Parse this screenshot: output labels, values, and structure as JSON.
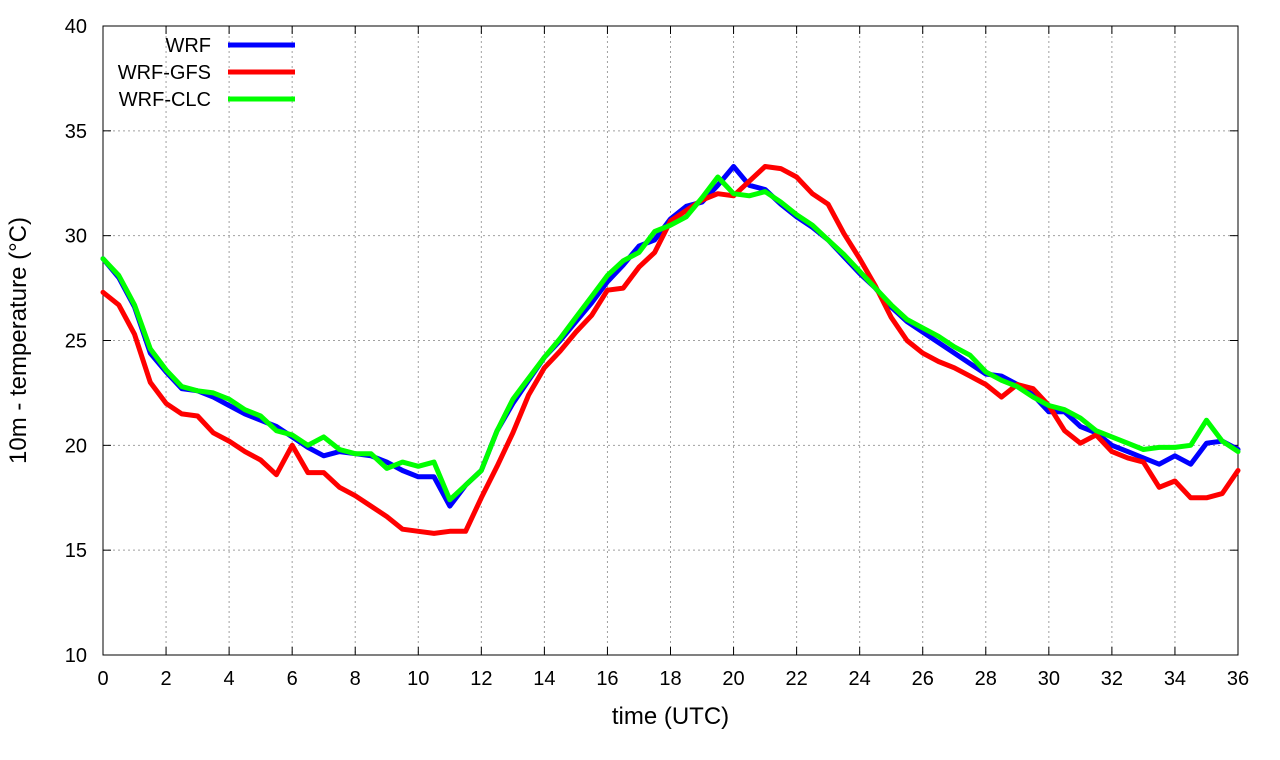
{
  "chart_data": {
    "type": "line",
    "title": "",
    "xlabel": "time (UTC)",
    "ylabel": "10m - temperature (°C)",
    "xlim": [
      0,
      36
    ],
    "ylim": [
      10,
      40
    ],
    "xticks": [
      0,
      2,
      4,
      6,
      8,
      10,
      12,
      14,
      16,
      18,
      20,
      22,
      24,
      26,
      28,
      30,
      32,
      34,
      36
    ],
    "yticks": [
      10,
      15,
      20,
      25,
      30,
      35,
      40
    ],
    "grid": true,
    "legend_position": "top-left",
    "x": [
      0,
      0.5,
      1,
      1.5,
      2,
      2.5,
      3,
      3.5,
      4,
      4.5,
      5,
      5.5,
      6,
      6.5,
      7,
      7.5,
      8,
      8.5,
      9,
      9.5,
      10,
      10.5,
      11,
      11.5,
      12,
      12.5,
      13,
      13.5,
      14,
      14.5,
      15,
      15.5,
      16,
      16.5,
      17,
      17.5,
      18,
      18.5,
      19,
      19.5,
      20,
      20.5,
      21,
      21.5,
      22,
      22.5,
      23,
      23.5,
      24,
      24.5,
      25,
      25.5,
      26,
      26.5,
      27,
      27.5,
      28,
      28.5,
      29,
      29.5,
      30,
      30.5,
      31,
      31.5,
      32,
      32.5,
      33,
      33.5,
      34,
      34.5,
      35,
      35.5,
      36
    ],
    "series": [
      {
        "name": "WRF",
        "color": "#0000ff",
        "values": [
          28.9,
          28.0,
          26.6,
          24.4,
          23.5,
          22.7,
          22.6,
          22.3,
          21.9,
          21.5,
          21.2,
          20.9,
          20.4,
          19.9,
          19.5,
          19.7,
          19.6,
          19.5,
          19.2,
          18.8,
          18.5,
          18.5,
          17.1,
          18.1,
          18.8,
          20.7,
          22.0,
          23.1,
          24.2,
          25.0,
          25.9,
          26.8,
          27.8,
          28.6,
          29.5,
          29.8,
          30.8,
          31.4,
          31.6,
          32.4,
          33.3,
          32.4,
          32.2,
          31.5,
          30.9,
          30.4,
          29.8,
          29.0,
          28.2,
          27.5,
          26.6,
          25.9,
          25.4,
          24.9,
          24.4,
          23.9,
          23.4,
          23.3,
          22.9,
          22.4,
          21.6,
          21.6,
          20.9,
          20.6,
          20.0,
          19.7,
          19.4,
          19.1,
          19.5,
          19.1,
          20.1,
          20.2,
          19.8
        ]
      },
      {
        "name": "WRF-GFS",
        "color": "#ff0000",
        "values": [
          27.3,
          26.7,
          25.3,
          23.0,
          22.0,
          21.5,
          21.4,
          20.6,
          20.2,
          19.7,
          19.3,
          18.6,
          20.0,
          18.7,
          18.7,
          18.0,
          17.6,
          17.1,
          16.6,
          16.0,
          15.9,
          15.8,
          15.9,
          15.9,
          17.5,
          19.0,
          20.6,
          22.4,
          23.7,
          24.5,
          25.4,
          26.2,
          27.4,
          27.5,
          28.5,
          29.2,
          30.7,
          31.2,
          31.7,
          32.0,
          31.9,
          32.6,
          33.3,
          33.2,
          32.8,
          32.0,
          31.5,
          30.1,
          28.9,
          27.6,
          26.1,
          25.0,
          24.4,
          24.0,
          23.7,
          23.3,
          22.9,
          22.3,
          22.9,
          22.7,
          21.9,
          20.7,
          20.1,
          20.5,
          19.7,
          19.4,
          19.2,
          18.0,
          18.3,
          17.5,
          17.5,
          17.7,
          18.8
        ]
      },
      {
        "name": "WRF-CLC",
        "color": "#00ff00",
        "values": [
          28.9,
          28.1,
          26.7,
          24.6,
          23.6,
          22.8,
          22.6,
          22.5,
          22.2,
          21.7,
          21.4,
          20.7,
          20.5,
          20.0,
          20.4,
          19.8,
          19.6,
          19.6,
          18.9,
          19.2,
          19.0,
          19.2,
          17.4,
          18.1,
          18.8,
          20.7,
          22.2,
          23.2,
          24.2,
          25.1,
          26.1,
          27.1,
          28.1,
          28.8,
          29.2,
          30.2,
          30.5,
          30.9,
          31.8,
          32.8,
          32.0,
          31.9,
          32.1,
          31.6,
          31.0,
          30.5,
          29.8,
          29.1,
          28.3,
          27.5,
          26.7,
          26.0,
          25.6,
          25.2,
          24.7,
          24.3,
          23.5,
          23.1,
          22.8,
          22.3,
          21.9,
          21.7,
          21.3,
          20.7,
          20.4,
          20.1,
          19.8,
          19.9,
          19.9,
          20.0,
          21.2,
          20.2,
          19.7
        ]
      }
    ]
  }
}
